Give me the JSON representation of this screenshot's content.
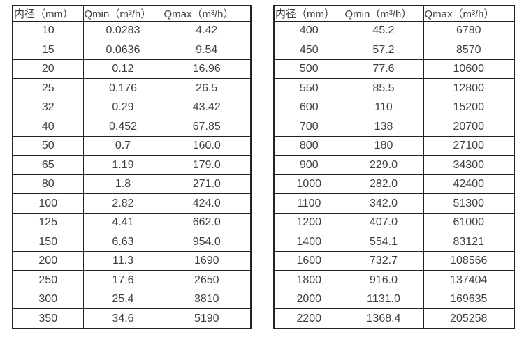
{
  "colors": {
    "border": "#222222",
    "text": "#3f3f3f",
    "background": "#ffffff"
  },
  "tables": [
    {
      "name": "flow-spec-table-small-diameters",
      "headers": [
        "内径（mm）",
        "Qmin（m³/h）",
        "Qmax（m³/h）"
      ],
      "rows": [
        [
          "10",
          "0.0283",
          "4.42"
        ],
        [
          "15",
          "0.0636",
          "9.54"
        ],
        [
          "20",
          "0.12",
          "16.96"
        ],
        [
          "25",
          "0.176",
          "26.5"
        ],
        [
          "32",
          "0.29",
          "43.42"
        ],
        [
          "40",
          "0.452",
          "67.85"
        ],
        [
          "50",
          "0.7",
          "160.0"
        ],
        [
          "65",
          "1.19",
          "179.0"
        ],
        [
          "80",
          "1.8",
          "271.0"
        ],
        [
          "100",
          "2.82",
          "424.0"
        ],
        [
          "125",
          "4.41",
          "662.0"
        ],
        [
          "150",
          "6.63",
          "954.0"
        ],
        [
          "200",
          "11.3",
          "1690"
        ],
        [
          "250",
          "17.6",
          "2650"
        ],
        [
          "300",
          "25.4",
          "3810"
        ],
        [
          "350",
          "34.6",
          "5190"
        ]
      ]
    },
    {
      "name": "flow-spec-table-large-diameters",
      "headers": [
        "内径（mm）",
        "Qmin（m³/h）",
        "Qmax（m³/h）"
      ],
      "rows": [
        [
          "400",
          "45.2",
          "6780"
        ],
        [
          "450",
          "57.2",
          "8570"
        ],
        [
          "500",
          "77.6",
          "10600"
        ],
        [
          "550",
          "85.5",
          "12800"
        ],
        [
          "600",
          "110",
          "15200"
        ],
        [
          "700",
          "138",
          "20700"
        ],
        [
          "800",
          "180",
          "27100"
        ],
        [
          "900",
          "229.0",
          "34300"
        ],
        [
          "1000",
          "282.0",
          "42400"
        ],
        [
          "1100",
          "342.0",
          "51300"
        ],
        [
          "1200",
          "407.0",
          "61000"
        ],
        [
          "1400",
          "554.1",
          "83121"
        ],
        [
          "1600",
          "732.7",
          "108566"
        ],
        [
          "1800",
          "916.0",
          "137404"
        ],
        [
          "2000",
          "1131.0",
          "169635"
        ],
        [
          "2200",
          "1368.4",
          "205258"
        ]
      ]
    }
  ]
}
